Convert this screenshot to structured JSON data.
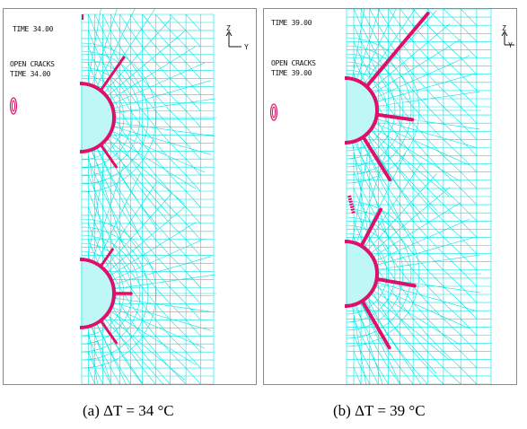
{
  "panels": [
    {
      "id": "a",
      "time_label": "TIME 34.00",
      "cracks_title": "OPEN CRACKS",
      "cracks_time": "TIME 34.00",
      "axis_z": "Z",
      "axis_y": "Y",
      "caption": "(a) ΔT = 34 °C"
    },
    {
      "id": "b",
      "time_label": "TIME 39.00",
      "cracks_title": "OPEN CRACKS",
      "cracks_time": "TIME 39.00",
      "axis_z": "Z",
      "axis_y": "Y",
      "caption": "(b) ΔT = 39 °C"
    }
  ],
  "colors": {
    "mesh": "#00e5e5",
    "cracks": "#e0106a",
    "frame": "#8a8a8a"
  }
}
